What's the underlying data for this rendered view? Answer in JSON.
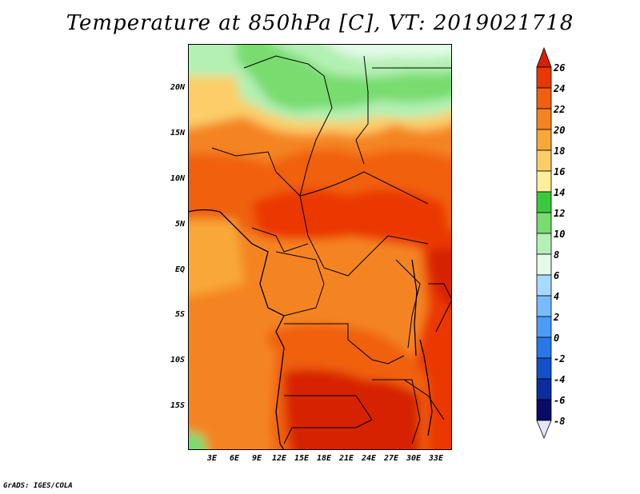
{
  "title": "Temperature at 850hPa [C], VT: 2019021718",
  "footer": "GrADS: IGES/COLA",
  "map": {
    "lat_labels": [
      "20N",
      "15N",
      "10N",
      "5N",
      "EQ",
      "5S",
      "10S",
      "15S"
    ],
    "lon_labels": [
      "3E",
      "6E",
      "9E",
      "12E",
      "15E",
      "18E",
      "21E",
      "24E",
      "27E",
      "30E",
      "33E"
    ]
  },
  "colorbar": {
    "labels": [
      "26",
      "24",
      "22",
      "20",
      "18",
      "16",
      "14",
      "12",
      "10",
      "8",
      "6",
      "4",
      "2",
      "0",
      "-2",
      "-4",
      "-6",
      "-8"
    ],
    "colors": [
      "#d62000",
      "#ea3800",
      "#f06010",
      "#f48420",
      "#f8a838",
      "#fccd68",
      "#fdf098",
      "#3cc83c",
      "#78dc6e",
      "#b4f0b4",
      "#e4fae8",
      "#a8daff",
      "#78bcff",
      "#4a9cf6",
      "#2878e8",
      "#1450c8",
      "#0c2ca0",
      "#080c64",
      "#e6e6fa"
    ]
  }
}
